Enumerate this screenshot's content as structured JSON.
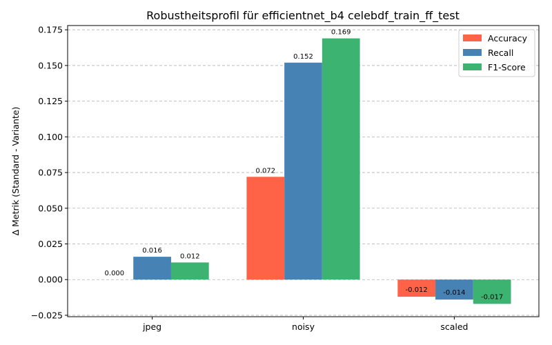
{
  "chart_data": {
    "type": "bar",
    "title": "Robustheitsprofil für efficientnet_b4 celebdf_train_ff_test",
    "xlabel": "",
    "ylabel": "Δ Metrik (Standard - Variante)",
    "categories": [
      "jpeg",
      "noisy",
      "scaled"
    ],
    "series": [
      {
        "name": "Accuracy",
        "color": "#FF6347",
        "values": [
          0.0,
          0.072,
          -0.012
        ],
        "labels": [
          "0.000",
          "0.072",
          "-0.012"
        ]
      },
      {
        "name": "Recall",
        "color": "#4682B4",
        "values": [
          0.016,
          0.152,
          -0.014
        ],
        "labels": [
          "0.016",
          "0.152",
          "-0.014"
        ]
      },
      {
        "name": "F1-Score",
        "color": "#3CB371",
        "values": [
          0.012,
          0.169,
          -0.017
        ],
        "labels": [
          "0.012",
          "0.169",
          "-0.017"
        ]
      }
    ],
    "ylim": [
      -0.026,
      0.178
    ],
    "yticks": [
      -0.025,
      0.0,
      0.025,
      0.05,
      0.075,
      0.1,
      0.125,
      0.15,
      0.175
    ],
    "ytick_labels": [
      "−0.025",
      "0.000",
      "0.025",
      "0.050",
      "0.075",
      "0.100",
      "0.125",
      "0.150",
      "0.175"
    ],
    "grid": "y, dashed",
    "legend_position": "top-right"
  }
}
